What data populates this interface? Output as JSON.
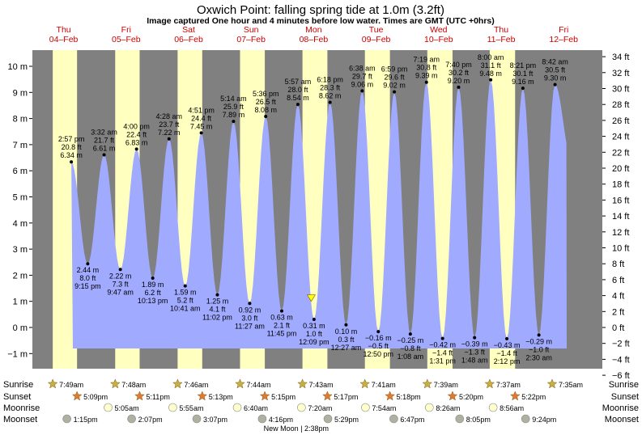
{
  "header": {
    "title": "Oxwich Point: falling  spring tide at 1.0m (3.2ft)",
    "subtitle": "Image captured One hour and 4 minutes before low water. Times are GMT (UTC +0hrs)"
  },
  "colors": {
    "night": "#808080",
    "day": "#ffffc0",
    "water": "#a0aaff",
    "day_label": "#cc0000",
    "sun_marker": "#c8b040",
    "sunset_marker": "#e07a30",
    "moonrise_marker": "#ffffcc",
    "moonset_marker": "#b0b0a0",
    "now_marker": "#ffff00"
  },
  "chart_data": {
    "type": "area",
    "title": "Oxwich Point: falling  spring tide at 1.0m (3.2ft)",
    "subtitle": "Image captured One hour and 4 minutes before low water. Times are GMT (UTC +0hrs)",
    "ylabel_left": "m",
    "ylabel_right": "ft",
    "ylim": [
      -1.4,
      10.6
    ],
    "left_ticks": [
      "10 m",
      "9 m",
      "8 m",
      "7 m",
      "6 m",
      "5 m",
      "4 m",
      "3 m",
      "2 m",
      "1 m",
      "0 m",
      "−1 m"
    ],
    "right_ticks": [
      "34 ft",
      "32 ft",
      "30 ft",
      "28 ft",
      "26 ft",
      "24 ft",
      "22 ft",
      "20 ft",
      "18 ft",
      "16 ft",
      "14 ft",
      "12 ft",
      "10 ft",
      "8 ft",
      "6 ft",
      "4 ft",
      "2 ft",
      "0 ft",
      "−2 ft",
      "−4 ft",
      "−6 ft"
    ],
    "days": [
      {
        "name": "Thu",
        "date": "04–Feb"
      },
      {
        "name": "Fri",
        "date": "05–Feb"
      },
      {
        "name": "Sat",
        "date": "06–Feb"
      },
      {
        "name": "Sun",
        "date": "07–Feb"
      },
      {
        "name": "Mon",
        "date": "08–Feb"
      },
      {
        "name": "Tue",
        "date": "09–Feb"
      },
      {
        "name": "Wed",
        "date": "10–Feb"
      },
      {
        "name": "Thu",
        "date": "11–Feb"
      },
      {
        "name": "Fri",
        "date": "12–Feb"
      }
    ],
    "daylight": [
      {
        "day": "04-Feb",
        "sunrise": "7:49am",
        "sunset": "5:09pm"
      },
      {
        "day": "05-Feb",
        "sunrise": "7:48am",
        "sunset": "5:11pm"
      },
      {
        "day": "06-Feb",
        "sunrise": "7:46am",
        "sunset": "5:13pm"
      },
      {
        "day": "07-Feb",
        "sunrise": "7:44am",
        "sunset": "5:15pm"
      },
      {
        "day": "08-Feb",
        "sunrise": "7:43am",
        "sunset": "5:17pm"
      },
      {
        "day": "09-Feb",
        "sunrise": "7:41am",
        "sunset": "5:18pm"
      },
      {
        "day": "10-Feb",
        "sunrise": "7:39am",
        "sunset": "5:20pm"
      },
      {
        "day": "11-Feb",
        "sunrise": "7:37am",
        "sunset": "5:22pm"
      },
      {
        "day": "12-Feb",
        "sunrise": "7:35am",
        "sunset": ""
      }
    ],
    "tides": [
      {
        "type": "high",
        "day": 0,
        "time": "2:57 pm",
        "m": 6.34,
        "ft": "20.8 ft",
        "m_label": "6.34 m"
      },
      {
        "type": "low",
        "day": 0,
        "time": "9:15 pm",
        "m": 2.44,
        "ft": "8.0 ft",
        "m_label": "2.44 m"
      },
      {
        "type": "high",
        "day": 1,
        "time": "3:32 am",
        "m": 6.61,
        "ft": "21.7 ft",
        "m_label": "6.61 m"
      },
      {
        "type": "low",
        "day": 1,
        "time": "9:47 am",
        "m": 2.22,
        "ft": "7.3 ft",
        "m_label": "2.22 m"
      },
      {
        "type": "high",
        "day": 1,
        "time": "4:00 pm",
        "m": 6.83,
        "ft": "22.4 ft",
        "m_label": "6.83 m"
      },
      {
        "type": "low",
        "day": 1,
        "time": "10:13 pm",
        "m": 1.89,
        "ft": "6.2 ft",
        "m_label": "1.89 m"
      },
      {
        "type": "high",
        "day": 2,
        "time": "4:28 am",
        "m": 7.22,
        "ft": "23.7 ft",
        "m_label": "7.22 m"
      },
      {
        "type": "low",
        "day": 2,
        "time": "10:41 am",
        "m": 1.59,
        "ft": "5.2 ft",
        "m_label": "1.59 m"
      },
      {
        "type": "high",
        "day": 2,
        "time": "4:51 pm",
        "m": 7.45,
        "ft": "24.4 ft",
        "m_label": "7.45 m"
      },
      {
        "type": "low",
        "day": 2,
        "time": "11:02 pm",
        "m": 1.25,
        "ft": "4.1 ft",
        "m_label": "1.25 m"
      },
      {
        "type": "high",
        "day": 3,
        "time": "5:14 am",
        "m": 7.89,
        "ft": "25.9 ft",
        "m_label": "7.89 m"
      },
      {
        "type": "low",
        "day": 3,
        "time": "11:27 am",
        "m": 0.92,
        "ft": "3.0 ft",
        "m_label": "0.92 m"
      },
      {
        "type": "high",
        "day": 3,
        "time": "5:36 pm",
        "m": 8.08,
        "ft": "26.5 ft",
        "m_label": "8.08 m"
      },
      {
        "type": "low",
        "day": 3,
        "time": "11:45 pm",
        "m": 0.63,
        "ft": "2.1 ft",
        "m_label": "0.63 m"
      },
      {
        "type": "high",
        "day": 4,
        "time": "5:57 am",
        "m": 8.54,
        "ft": "28.0 ft",
        "m_label": "8.54 m"
      },
      {
        "type": "low",
        "day": 4,
        "time": "12:09 pm",
        "m": 0.31,
        "ft": "1.0 ft",
        "m_label": "0.31 m"
      },
      {
        "type": "high",
        "day": 4,
        "time": "6:18 pm",
        "m": 8.62,
        "ft": "28.3 ft",
        "m_label": "8.62 m"
      },
      {
        "type": "low",
        "day": 5,
        "time": "12:27 am",
        "m": 0.1,
        "ft": "0.3 ft",
        "m_label": "0.10 m"
      },
      {
        "type": "high",
        "day": 5,
        "time": "6:38 am",
        "m": 9.06,
        "ft": "29.7 ft",
        "m_label": "9.06 m"
      },
      {
        "type": "low",
        "day": 5,
        "time": "12:50 pm",
        "m": -0.16,
        "ft": "−0.5 ft",
        "m_label": "−0.16 m"
      },
      {
        "type": "high",
        "day": 5,
        "time": "6:59 pm",
        "m": 9.02,
        "ft": "29.6 ft",
        "m_label": "9.02 m"
      },
      {
        "type": "low",
        "day": 6,
        "time": "1:08 am",
        "m": -0.25,
        "ft": "−0.8 ft",
        "m_label": "−0.25 m"
      },
      {
        "type": "high",
        "day": 6,
        "time": "7:19 am",
        "m": 9.39,
        "ft": "30.8 ft",
        "m_label": "9.39 m"
      },
      {
        "type": "low",
        "day": 6,
        "time": "1:31 pm",
        "m": -0.42,
        "ft": "−1.4 ft",
        "m_label": "−0.42 m"
      },
      {
        "type": "high",
        "day": 6,
        "time": "7:40 pm",
        "m": 9.2,
        "ft": "30.2 ft",
        "m_label": "9.20 m"
      },
      {
        "type": "low",
        "day": 7,
        "time": "1:48 am",
        "m": -0.39,
        "ft": "−1.3 ft",
        "m_label": "−0.39 m"
      },
      {
        "type": "high",
        "day": 7,
        "time": "8:00 am",
        "m": 9.48,
        "ft": "31.1 ft",
        "m_label": "9.48 m"
      },
      {
        "type": "low",
        "day": 7,
        "time": "2:12 pm",
        "m": -0.43,
        "ft": "−1.4 ft",
        "m_label": "−0.43 m"
      },
      {
        "type": "high",
        "day": 7,
        "time": "8:21 pm",
        "m": 9.16,
        "ft": "30.1 ft",
        "m_label": "9.16 m"
      },
      {
        "type": "low",
        "day": 8,
        "time": "2:30 am",
        "m": -0.29,
        "ft": "−1.0 ft",
        "m_label": "−0.29 m"
      },
      {
        "type": "high",
        "day": 8,
        "time": "8:42 am",
        "m": 9.3,
        "ft": "30.5 ft",
        "m_label": "9.30 m"
      }
    ],
    "current": {
      "day": 4,
      "time": "11:05 am",
      "m": 1.0
    }
  },
  "events": {
    "row_labels": {
      "sunrise": "Sunrise",
      "sunset": "Sunset",
      "moonrise": "Moonrise",
      "moonset": "Moonset"
    },
    "sunrise": [
      {
        "day": 0,
        "time": "7:49am"
      },
      {
        "day": 1,
        "time": "7:48am"
      },
      {
        "day": 2,
        "time": "7:46am"
      },
      {
        "day": 3,
        "time": "7:44am"
      },
      {
        "day": 4,
        "time": "7:43am"
      },
      {
        "day": 5,
        "time": "7:41am"
      },
      {
        "day": 6,
        "time": "7:39am"
      },
      {
        "day": 7,
        "time": "7:37am"
      },
      {
        "day": 8,
        "time": "7:35am"
      }
    ],
    "sunset": [
      {
        "day": 0,
        "time": "5:09pm"
      },
      {
        "day": 1,
        "time": "5:11pm"
      },
      {
        "day": 2,
        "time": "5:13pm"
      },
      {
        "day": 3,
        "time": "5:15pm"
      },
      {
        "day": 4,
        "time": "5:17pm"
      },
      {
        "day": 5,
        "time": "5:18pm"
      },
      {
        "day": 6,
        "time": "5:20pm"
      },
      {
        "day": 7,
        "time": "5:22pm"
      }
    ],
    "moonrise": [
      {
        "day": 1,
        "time": "5:05am"
      },
      {
        "day": 2,
        "time": "5:55am"
      },
      {
        "day": 3,
        "time": "6:40am"
      },
      {
        "day": 4,
        "time": "7:20am"
      },
      {
        "day": 5,
        "time": "7:54am"
      },
      {
        "day": 6,
        "time": "8:26am"
      },
      {
        "day": 7,
        "time": "8:56am"
      }
    ],
    "moonset": [
      {
        "day": 0,
        "time": "1:15pm"
      },
      {
        "day": 1,
        "time": "2:07pm"
      },
      {
        "day": 2,
        "time": "3:07pm"
      },
      {
        "day": 3,
        "time": "4:16pm"
      },
      {
        "day": 4,
        "time": "5:29pm"
      },
      {
        "day": 5,
        "time": "6:47pm"
      },
      {
        "day": 6,
        "time": "8:05pm"
      },
      {
        "day": 7,
        "time": "9:24pm"
      }
    ],
    "moon_phase": {
      "day": 4,
      "time": "2:38pm",
      "label": "New Moon | 2:38pm"
    }
  }
}
